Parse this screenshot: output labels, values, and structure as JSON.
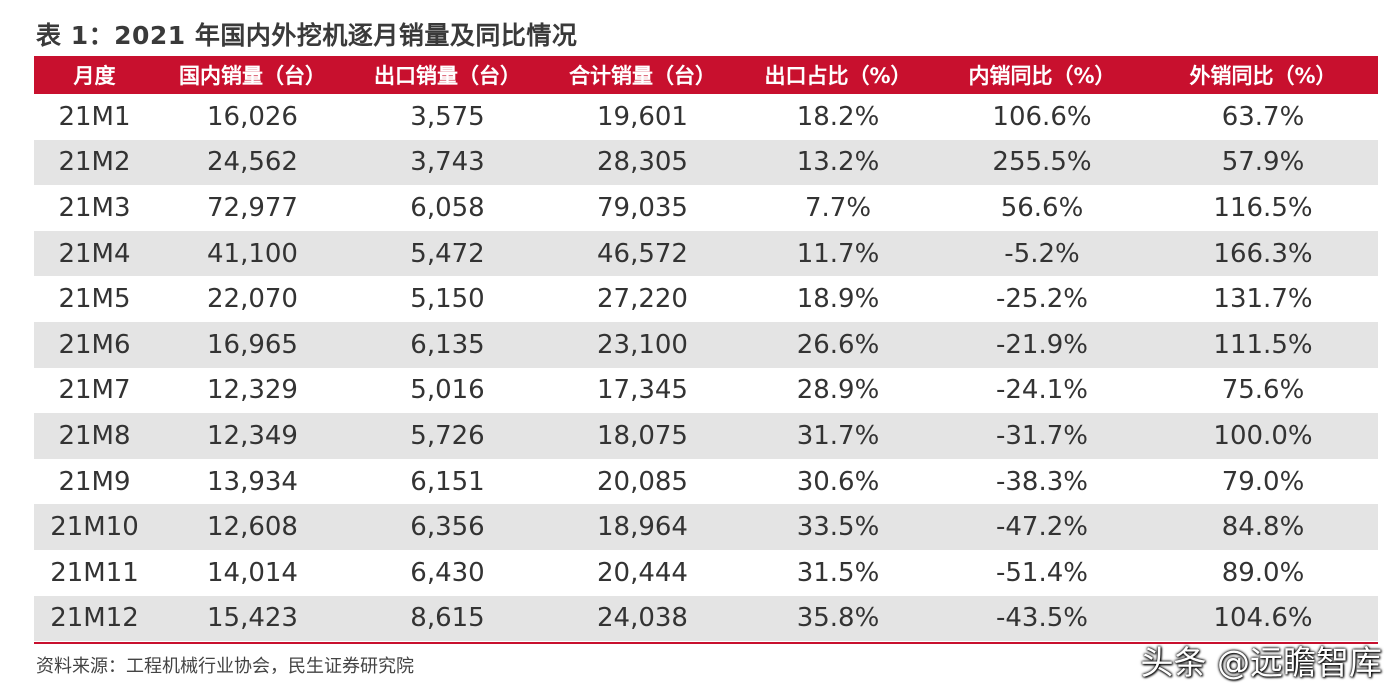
{
  "title": "表 1：2021 年国内外挖机逐月销量及同比情况",
  "table": {
    "headers": [
      "月度",
      "国内销量（台）",
      "出口销量（台）",
      "合计销量（台）",
      "出口占比（%）",
      "内销同比（%）",
      "外销同比（%）"
    ],
    "rows": [
      [
        "21M1",
        "16,026",
        "3,575",
        "19,601",
        "18.2%",
        "106.6%",
        "63.7%"
      ],
      [
        "21M2",
        "24,562",
        "3,743",
        "28,305",
        "13.2%",
        "255.5%",
        "57.9%"
      ],
      [
        "21M3",
        "72,977",
        "6,058",
        "79,035",
        "7.7%",
        "56.6%",
        "116.5%"
      ],
      [
        "21M4",
        "41,100",
        "5,472",
        "46,572",
        "11.7%",
        "-5.2%",
        "166.3%"
      ],
      [
        "21M5",
        "22,070",
        "5,150",
        "27,220",
        "18.9%",
        "-25.2%",
        "131.7%"
      ],
      [
        "21M6",
        "16,965",
        "6,135",
        "23,100",
        "26.6%",
        "-21.9%",
        "111.5%"
      ],
      [
        "21M7",
        "12,329",
        "5,016",
        "17,345",
        "28.9%",
        "-24.1%",
        "75.6%"
      ],
      [
        "21M8",
        "12,349",
        "5,726",
        "18,075",
        "31.7%",
        "-31.7%",
        "100.0%"
      ],
      [
        "21M9",
        "13,934",
        "6,151",
        "20,085",
        "30.6%",
        "-38.3%",
        "79.0%"
      ],
      [
        "21M10",
        "12,608",
        "6,356",
        "18,964",
        "33.5%",
        "-47.2%",
        "84.8%"
      ],
      [
        "21M11",
        "14,014",
        "6,430",
        "20,444",
        "31.5%",
        "-51.4%",
        "89.0%"
      ],
      [
        "21M12",
        "15,423",
        "8,615",
        "24,038",
        "35.8%",
        "-43.5%",
        "104.6%"
      ]
    ]
  },
  "source": "资料来源：工程机械行业协会，民生证券研究院",
  "watermark": "头条 @远瞻智库",
  "colors": {
    "header_bg": "#c8102e",
    "stripe_bg": "#e4e4e4",
    "rule": "#c8102e"
  }
}
